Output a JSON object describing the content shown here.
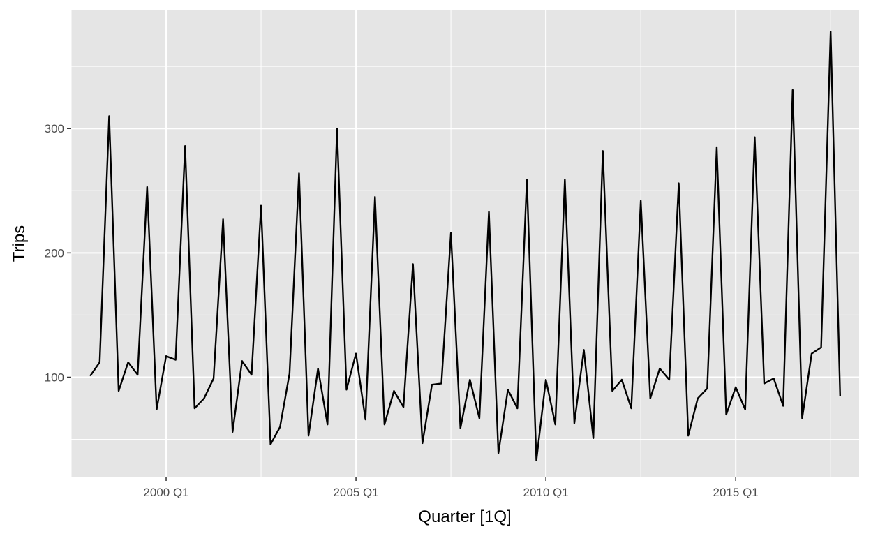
{
  "chart_data": {
    "type": "line",
    "title": "",
    "xlabel": "Quarter [1Q]",
    "ylabel": "Trips",
    "x_start": "1998 Q1",
    "frequency": "quarterly",
    "x_tick_labels": [
      "2000 Q1",
      "2005 Q1",
      "2010 Q1",
      "2015 Q1"
    ],
    "y_ticks": [
      100,
      200,
      300
    ],
    "xlim": [
      "1997 Q3",
      "2018 Q2"
    ],
    "ylim": [
      20,
      395
    ],
    "grid": true,
    "legend": "none",
    "colors": {
      "panel_bg": "#e5e5e5",
      "grid": "#ffffff",
      "line": "#000000"
    },
    "series": [
      {
        "values": [
          101,
          112,
          310,
          89,
          112,
          102,
          253,
          74,
          117,
          114,
          286,
          75,
          83,
          99,
          227,
          56,
          113,
          102,
          238,
          46,
          60,
          103,
          264,
          53,
          107,
          62,
          300,
          90,
          119,
          66,
          245,
          62,
          89,
          76,
          191,
          47,
          94,
          95,
          216,
          59,
          98,
          67,
          233,
          39,
          90,
          75,
          259,
          33,
          98,
          62,
          259,
          63,
          122,
          51,
          282,
          89,
          98,
          75,
          242,
          83,
          107,
          98,
          256,
          53,
          83,
          91,
          285,
          70,
          92,
          74,
          293,
          95,
          99,
          77,
          331,
          67,
          119,
          124,
          378,
          85
        ]
      }
    ]
  }
}
